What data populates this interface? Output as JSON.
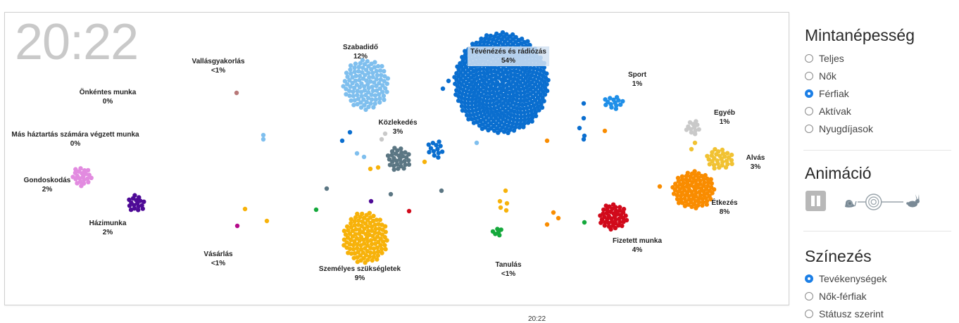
{
  "clock": "20:22",
  "footer_time": "20:22",
  "colors": {
    "tv": "#0a6ecf",
    "free": "#7fbfee",
    "transport": "#5b7683",
    "sport": "#1f8fe8",
    "other": "#c9c9c9",
    "sleep": "#f1c232",
    "food": "#f98c00",
    "paid": "#d10a1b",
    "personal": "#f7b20a",
    "study": "#14a83b",
    "house": "#4e0a96",
    "care": "#e28be0",
    "religion": "#b87878",
    "shopping": "#b50a8a",
    "grey": "#c8c8c8",
    "blue": "#1c7fe6"
  },
  "activities": [
    {
      "key": "voluntary",
      "name": "Önkéntes munka",
      "pct": "0%"
    },
    {
      "key": "other_household",
      "name": "Más háztartás számára végzett munka",
      "pct": "0%"
    },
    {
      "key": "care",
      "name": "Gondoskodás",
      "pct": "2%"
    },
    {
      "key": "housework",
      "name": "Házimunka",
      "pct": "2%"
    },
    {
      "key": "religion",
      "name": "Vallásgyakorlás",
      "pct": "<1%"
    },
    {
      "key": "shopping",
      "name": "Vásárlás",
      "pct": "<1%"
    },
    {
      "key": "free",
      "name": "Szabadidő",
      "pct": "12%"
    },
    {
      "key": "transport",
      "name": "Közlekedés",
      "pct": "3%"
    },
    {
      "key": "personal",
      "name": "Személyes szükségletek",
      "pct": "9%"
    },
    {
      "key": "tv",
      "name": "Tévénézés és rádiózás",
      "pct": "54%"
    },
    {
      "key": "study",
      "name": "Tanulás",
      "pct": "<1%"
    },
    {
      "key": "sport",
      "name": "Sport",
      "pct": "1%"
    },
    {
      "key": "other",
      "name": "Egyéb",
      "pct": "1%"
    },
    {
      "key": "sleep",
      "name": "Alvás",
      "pct": "3%"
    },
    {
      "key": "food",
      "name": "Étkezés",
      "pct": "8%"
    },
    {
      "key": "paid",
      "name": "Fizetett munka",
      "pct": "4%"
    }
  ],
  "panel": {
    "population": {
      "title": "Mintanépesség",
      "options": [
        "Teljes",
        "Nők",
        "Férfiak",
        "Aktívak",
        "Nyugdíjasok"
      ],
      "selected": "Férfiak"
    },
    "animation": {
      "title": "Animáció",
      "pause_icon": "pause-icon",
      "slow_icon": "snail-icon",
      "fast_icon": "rabbit-icon",
      "speed_level": 0.35
    },
    "coloring": {
      "title": "Színezés",
      "options": [
        "Tevékenységek",
        "Nők-férfiak",
        "Státusz szerint"
      ],
      "selected": "Tevékenységek"
    }
  }
}
